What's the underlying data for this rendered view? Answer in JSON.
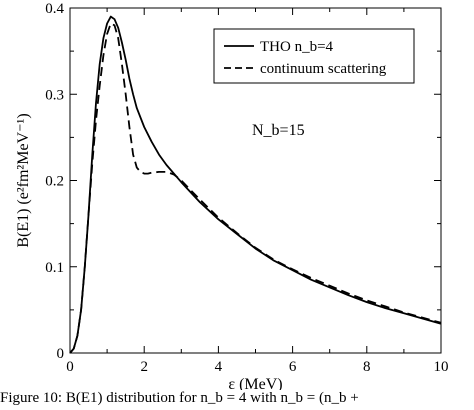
{
  "chart_data": {
    "type": "line",
    "xlabel": "ε (MeV)",
    "ylabel": "B(E1) (e²fm²MeV⁻¹)",
    "xlim": [
      0,
      10
    ],
    "ylim": [
      0,
      0.4
    ],
    "x_ticks": [
      "0",
      "2",
      "4",
      "6",
      "8",
      "10"
    ],
    "y_ticks": [
      "0",
      "0.1",
      "0.2",
      "0.3",
      "0.4"
    ],
    "grid": false,
    "legend_position": "top-right",
    "annotation": "N_b=15",
    "series": [
      {
        "name": "THO n_b=4",
        "style": "solid",
        "x": [
          0,
          0.1,
          0.2,
          0.3,
          0.4,
          0.5,
          0.6,
          0.7,
          0.8,
          0.9,
          1.0,
          1.1,
          1.2,
          1.3,
          1.4,
          1.5,
          1.6,
          1.7,
          1.8,
          2.0,
          2.2,
          2.4,
          2.6,
          2.8,
          3.0,
          3.5,
          4.0,
          4.5,
          5.0,
          5.5,
          6.0,
          6.5,
          7.0,
          7.5,
          8.0,
          8.5,
          9.0,
          9.5,
          10.0
        ],
        "y": [
          0,
          0.005,
          0.02,
          0.05,
          0.1,
          0.16,
          0.23,
          0.29,
          0.335,
          0.365,
          0.382,
          0.39,
          0.387,
          0.377,
          0.36,
          0.34,
          0.318,
          0.3,
          0.284,
          0.262,
          0.245,
          0.23,
          0.218,
          0.208,
          0.198,
          0.175,
          0.155,
          0.138,
          0.121,
          0.107,
          0.096,
          0.085,
          0.076,
          0.067,
          0.059,
          0.052,
          0.046,
          0.04,
          0.034
        ]
      },
      {
        "name": "continuum scattering",
        "style": "dashed",
        "x": [
          0,
          0.1,
          0.2,
          0.3,
          0.4,
          0.5,
          0.6,
          0.7,
          0.8,
          0.9,
          1.0,
          1.1,
          1.2,
          1.3,
          1.4,
          1.5,
          1.6,
          1.7,
          1.8,
          1.9,
          2.0,
          2.1,
          2.2,
          2.4,
          2.6,
          2.8,
          3.0,
          3.5,
          4.0,
          4.5,
          5.0,
          5.5,
          6.0,
          6.5,
          7.0,
          7.5,
          8.0,
          8.5,
          9.0,
          9.5,
          10.0
        ],
        "y": [
          0,
          0.005,
          0.02,
          0.05,
          0.1,
          0.16,
          0.22,
          0.27,
          0.31,
          0.345,
          0.37,
          0.382,
          0.38,
          0.365,
          0.335,
          0.3,
          0.262,
          0.23,
          0.215,
          0.21,
          0.208,
          0.208,
          0.209,
          0.21,
          0.21,
          0.207,
          0.2,
          0.178,
          0.157,
          0.139,
          0.122,
          0.108,
          0.097,
          0.087,
          0.078,
          0.069,
          0.061,
          0.054,
          0.047,
          0.041,
          0.035
        ]
      }
    ]
  },
  "caption": "Figure 10:   B(E1) distribution for n_b = 4 with n_b = (n_b +"
}
